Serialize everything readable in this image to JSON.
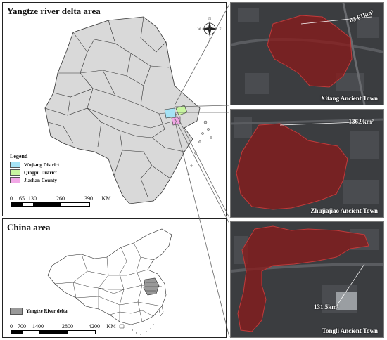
{
  "yangtze_panel": {
    "title": "Yangtze river delta area",
    "legend_title": "Legend",
    "legend": [
      {
        "label": "Wujiang District",
        "color": "#a6e3f5"
      },
      {
        "label": "Qingpu District",
        "color": "#c8f5a0"
      },
      {
        "label": "Jiashan County",
        "color": "#f2a8e6"
      }
    ],
    "scale": {
      "ticks": [
        "0",
        "65",
        "130",
        "260",
        "390"
      ],
      "unit": "KM"
    },
    "compass": {
      "n": "N",
      "s": "S",
      "e": "E",
      "w": "W"
    }
  },
  "china_panel": {
    "title": "China area",
    "legend": [
      {
        "label": "Yangtze River delta",
        "color": "#999999"
      }
    ],
    "scale": {
      "ticks": [
        "0",
        "700",
        "1400",
        "2800",
        "4200"
      ],
      "unit": "KM"
    }
  },
  "towns": [
    {
      "name": "Xitang Ancient Town",
      "area": "83.61km²"
    },
    {
      "name": "Zhujiajiao Ancient Town",
      "area": "136.9km²"
    },
    {
      "name": "Tongli Ancient Town",
      "area": "131.5km²"
    }
  ],
  "colors": {
    "region_fill": "#d9d9d9",
    "highlight": "#8b1a1a",
    "photo_base": "#3b3d40"
  }
}
